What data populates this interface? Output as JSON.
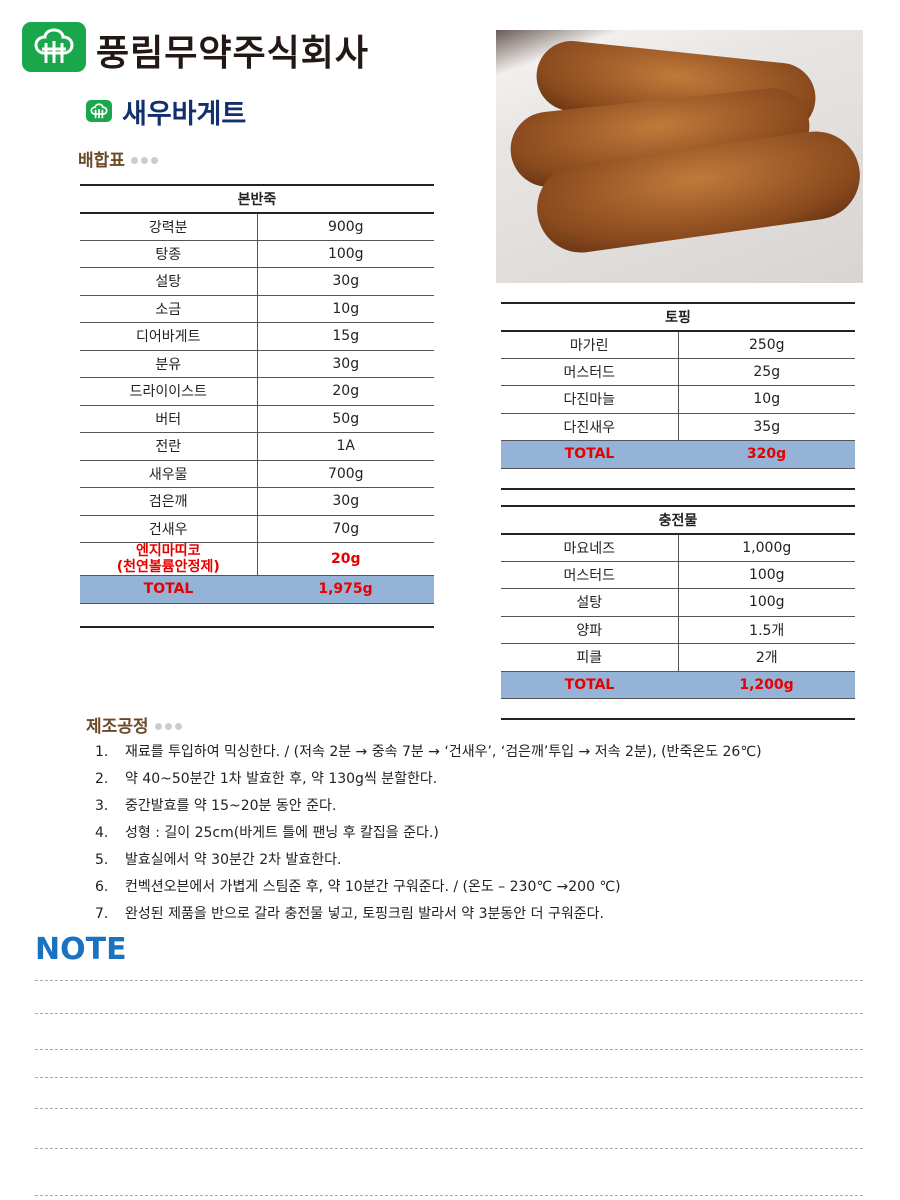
{
  "header": {
    "company": "풍림무약주식회사",
    "title": "새우바게트",
    "logo_icon": "tree-logo-icon"
  },
  "sections": {
    "recipe": "배합표",
    "process": "제조공정",
    "note": "NOTE"
  },
  "main_dough": {
    "title": "본반죽",
    "rows": [
      {
        "name": "강력분",
        "amount": "900g"
      },
      {
        "name": "탕종",
        "amount": "100g"
      },
      {
        "name": "설탕",
        "amount": "30g"
      },
      {
        "name": "소금",
        "amount": "10g"
      },
      {
        "name": "디어바게트",
        "amount": "15g"
      },
      {
        "name": "분유",
        "amount": "30g"
      },
      {
        "name": "드라이이스트",
        "amount": "20g"
      },
      {
        "name": "버터",
        "amount": "50g"
      },
      {
        "name": "전란",
        "amount": "1A"
      },
      {
        "name": "새우물",
        "amount": "700g"
      },
      {
        "name": "검은깨",
        "amount": "30g"
      },
      {
        "name": "건새우",
        "amount": "70g"
      },
      {
        "name": "엔지마띠코\n(천연볼륨안정제)",
        "amount": "20g",
        "highlight": true
      }
    ],
    "total_label": "TOTAL",
    "total": "1,975g"
  },
  "topping": {
    "title": "토핑",
    "rows": [
      {
        "name": "마가린",
        "amount": "250g"
      },
      {
        "name": "머스터드",
        "amount": "25g"
      },
      {
        "name": "다진마늘",
        "amount": "10g"
      },
      {
        "name": "다진새우",
        "amount": "35g"
      }
    ],
    "total_label": "TOTAL",
    "total": "320g"
  },
  "filling": {
    "title": "충전물",
    "rows": [
      {
        "name": "마요네즈",
        "amount": "1,000g"
      },
      {
        "name": "머스터드",
        "amount": "100g"
      },
      {
        "name": "설탕",
        "amount": "100g"
      },
      {
        "name": "양파",
        "amount": "1.5개"
      },
      {
        "name": "피클",
        "amount": "2개"
      }
    ],
    "total_label": "TOTAL",
    "total": "1,200g"
  },
  "process": [
    {
      "n": "1.",
      "text": "재료를 투입하여 믹싱한다.  / (저속 2분 → 중속 7분 → ‘건새우’, ‘검은깨’투입 → 저속 2분), (반죽온도 26℃)"
    },
    {
      "n": "2.",
      "text": "약 40~50분간 1차 발효한 후, 약 130g씩 분할한다."
    },
    {
      "n": "3.",
      "text": "중간발효를 약 15~20분 동안 준다."
    },
    {
      "n": "4.",
      "text": "성형 : 길이 25cm(바게트 틀에 팬닝 후 칼집을 준다.)"
    },
    {
      "n": "5.",
      "text": "발효실에서 약 30분간 2차 발효한다."
    },
    {
      "n": "6.",
      "text": "컨벡션오븐에서 가볍게 스팀준 후, 약 10분간 구워준다. / (온도 – 230℃ →200 ℃)"
    },
    {
      "n": "7.",
      "text": "완성된 제품을 반으로 갈라 충전물 넣고, 토핑크림 발라서 약 3분동안 더 구워준다."
    }
  ],
  "colors": {
    "brand_green": "#1aa64a",
    "title_navy": "#12306e",
    "total_bg": "#95b3d7",
    "total_text": "#e60000",
    "note_blue": "#1b72c0"
  }
}
